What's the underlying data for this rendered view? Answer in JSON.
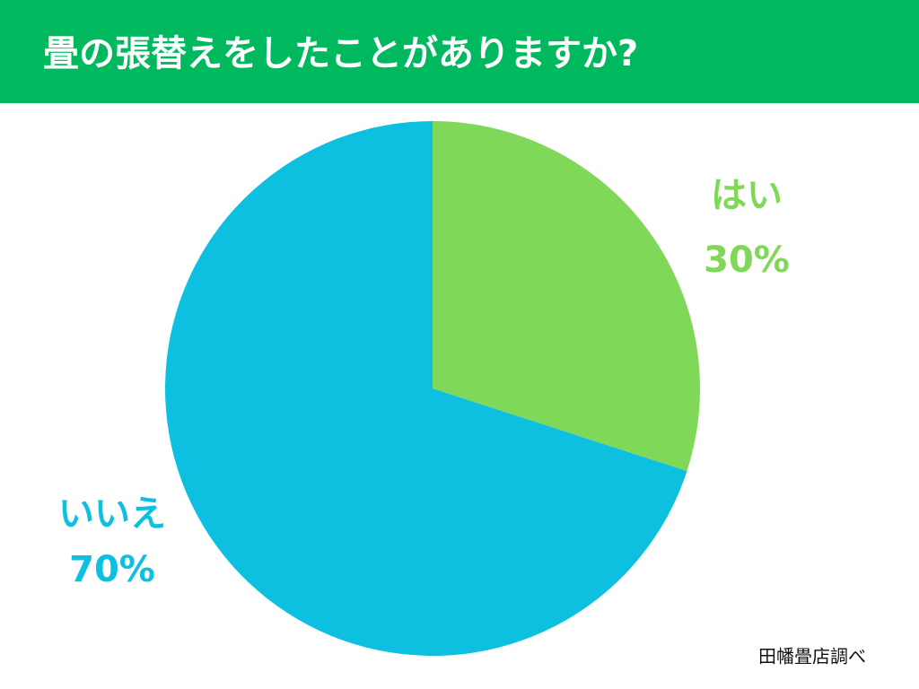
{
  "chart_data": {
    "type": "pie",
    "title": "畳の張替えをしたことがありますか?",
    "categories": [
      "はい",
      "いいえ"
    ],
    "values": [
      30,
      70
    ],
    "value_labels": [
      "30%",
      "70%"
    ],
    "colors": [
      "#80d858",
      "#0ec0e0"
    ],
    "source": "田幡畳店調べ"
  }
}
